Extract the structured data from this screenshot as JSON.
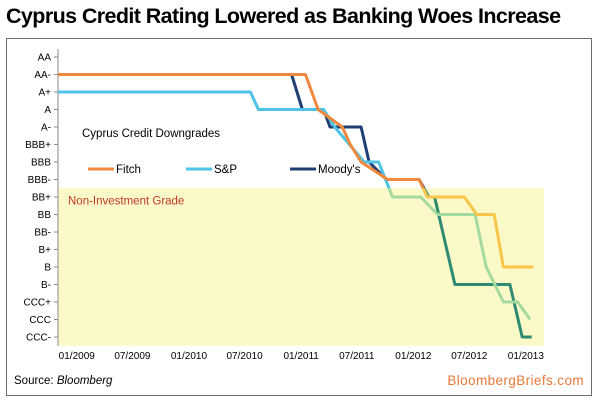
{
  "title": "Cyprus Credit Rating Lowered as Banking Woes Increase",
  "source_label": "Source: ",
  "source_name": "Bloomberg",
  "brand": "BloombergBriefs.com",
  "colors": {
    "fitch": "#f0883e",
    "sp": "#4dc3e7",
    "moodys": "#1d3f73",
    "shade": "#fcf9c8",
    "non_investment_text": "#c0392b",
    "brand": "#e8793a"
  },
  "chart_data": {
    "type": "line",
    "title": "Cyprus Credit Rating Lowered as Banking Woes Increase",
    "subtitle": "Cyprus Credit Downgrades",
    "xlabel": "",
    "ylabel": "",
    "y_categories": [
      "AA",
      "AA-",
      "A+",
      "A",
      "A-",
      "BBB+",
      "BBB",
      "BBB-",
      "BB+",
      "BB",
      "BB-",
      "B+",
      "B",
      "B-",
      "CCC+",
      "CCC",
      "CCC-"
    ],
    "x_ticks": [
      "01/2009",
      "07/2009",
      "01/2010",
      "07/2010",
      "01/2011",
      "07/2011",
      "01/2012",
      "07/2012",
      "01/2013"
    ],
    "xlim": [
      "2008-11-01",
      "2013-03-01"
    ],
    "legend": "inside-upper-middle",
    "grid": false,
    "shaded_region": {
      "label": "Non-Investment Grade",
      "from": "BB+",
      "to": "CCC-"
    },
    "series": [
      {
        "name": "Fitch",
        "color": "#f0883e",
        "points": [
          [
            "2008-11-01",
            "AA-"
          ],
          [
            "2011-01-15",
            "AA-"
          ],
          [
            "2011-02-25",
            "A"
          ],
          [
            "2011-05-15",
            "A-"
          ],
          [
            "2011-06-10",
            "BBB+"
          ],
          [
            "2011-07-15",
            "BBB"
          ],
          [
            "2011-10-10",
            "BBB-"
          ],
          [
            "2012-01-20",
            "BBB-"
          ],
          [
            "2012-02-15",
            "BB+"
          ],
          [
            "2012-06-15",
            "BB+"
          ],
          [
            "2012-07-25",
            "BB"
          ],
          [
            "2012-09-20",
            "BB"
          ],
          [
            "2012-10-20",
            "B"
          ],
          [
            "2012-12-20",
            "B"
          ],
          [
            "2013-01-25",
            "B"
          ]
        ]
      },
      {
        "name": "S&P",
        "color": "#4dc3e7",
        "points": [
          [
            "2008-11-01",
            "A+"
          ],
          [
            "2010-07-20",
            "A+"
          ],
          [
            "2010-08-15",
            "A"
          ],
          [
            "2011-03-15",
            "A"
          ],
          [
            "2011-04-20",
            "A-"
          ],
          [
            "2011-07-25",
            "BBB"
          ],
          [
            "2011-09-10",
            "BBB"
          ],
          [
            "2011-10-25",
            "BB+"
          ],
          [
            "2012-01-25",
            "BB+"
          ],
          [
            "2012-03-20",
            "BB"
          ],
          [
            "2012-07-20",
            "BB"
          ],
          [
            "2012-08-25",
            "B"
          ],
          [
            "2012-10-20",
            "CCC+"
          ],
          [
            "2012-12-05",
            "CCC+"
          ],
          [
            "2013-01-15",
            "CCC"
          ]
        ]
      },
      {
        "name": "Moody's",
        "color": "#1d3f73",
        "points": [
          [
            "2008-11-01",
            "AA-"
          ],
          [
            "2010-12-01",
            "AA-"
          ],
          [
            "2011-01-05",
            "A"
          ],
          [
            "2011-03-15",
            "A"
          ],
          [
            "2011-04-05",
            "A-"
          ],
          [
            "2011-07-15",
            "A-"
          ],
          [
            "2011-08-10",
            "BBB"
          ],
          [
            "2011-10-05",
            "BBB-"
          ],
          [
            "2012-01-20",
            "BBB-"
          ],
          [
            "2012-02-20",
            "BB+"
          ],
          [
            "2012-03-10",
            "BB+"
          ],
          [
            "2012-05-15",
            "B-"
          ],
          [
            "2012-11-10",
            "B-"
          ],
          [
            "2012-12-20",
            "CCC-"
          ],
          [
            "2013-01-20",
            "CCC-"
          ]
        ]
      }
    ]
  }
}
